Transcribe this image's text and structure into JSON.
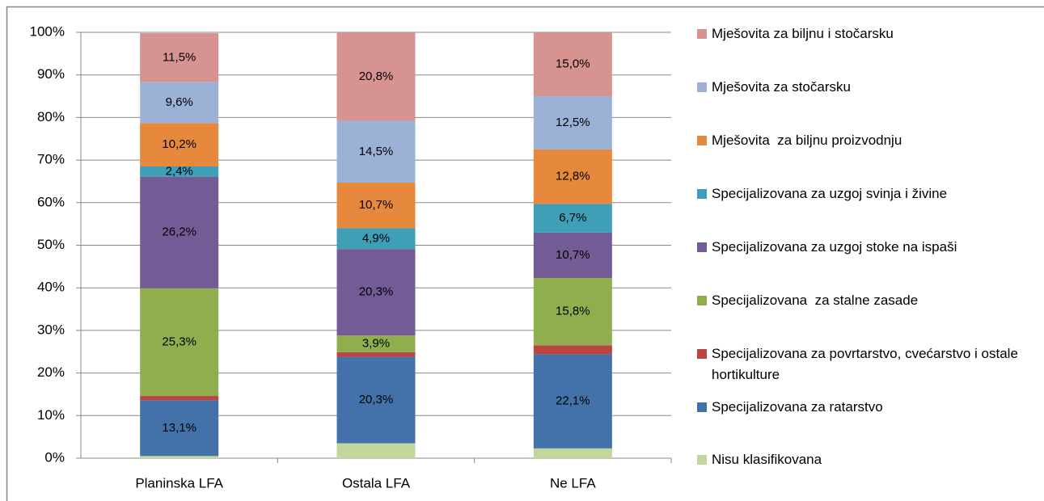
{
  "chart_data": {
    "type": "stacked-bar",
    "categories": [
      "Planinska LFA",
      "Ostala LFA",
      "Ne LFA"
    ],
    "series": [
      {
        "name": "Nisu klasifikovana",
        "color": "#c3d69b",
        "values": [
          0.5,
          3.5,
          2.3
        ],
        "value_labels": [
          null,
          null,
          null
        ]
      },
      {
        "name": "Specijalizovana za ratarstvo",
        "color": "#4372aa",
        "values": [
          13.1,
          20.3,
          22.1
        ],
        "value_labels": [
          "13,1%",
          "20,3%",
          "22,1%"
        ]
      },
      {
        "name": "Specijalizovana za povrtarstvo, cvećarstvo i ostale hortikulture",
        "color": "#bb4542",
        "values": [
          1.0,
          1.1,
          2.1
        ],
        "value_labels": [
          null,
          null,
          null
        ]
      },
      {
        "name": "Specijalizovana  za stalne zasade",
        "color": "#8faf4f",
        "values": [
          25.3,
          3.9,
          15.8
        ],
        "value_labels": [
          "25,3%",
          "3,9%",
          "15,8%"
        ]
      },
      {
        "name": "Specijalizovana za uzgoj stoke na ispaši",
        "color": "#735b96",
        "values": [
          26.2,
          20.3,
          10.7
        ],
        "value_labels": [
          "26,2%",
          "20,3%",
          "10,7%"
        ]
      },
      {
        "name": "Specijalizovana za uzgoj svinja i živine",
        "color": "#3f9fb7",
        "values": [
          2.4,
          4.9,
          6.7
        ],
        "value_labels": [
          "2,4%",
          "4,9%",
          "6,7%"
        ]
      },
      {
        "name": "Mješovita  za biljnu proizvodnju",
        "color": "#e6893d",
        "values": [
          10.2,
          10.7,
          12.8
        ],
        "value_labels": [
          "10,2%",
          "10,7%",
          "12,8%"
        ]
      },
      {
        "name": "Mješovita za stočarsku",
        "color": "#9bb1d6",
        "values": [
          9.6,
          14.5,
          12.5
        ],
        "value_labels": [
          "9,6%",
          "14,5%",
          "12,5%"
        ]
      },
      {
        "name": "Mješovita za biljnu i stočarsku",
        "color": "#d69391",
        "values": [
          11.5,
          20.8,
          15.0
        ],
        "value_labels": [
          "11,5%",
          "20,8%",
          "15,0%"
        ]
      }
    ],
    "ylim": [
      0,
      100
    ],
    "yticks": [
      {
        "value": 0,
        "label": "0%"
      },
      {
        "value": 10,
        "label": "10%"
      },
      {
        "value": 20,
        "label": "20%"
      },
      {
        "value": 30,
        "label": "30%"
      },
      {
        "value": 40,
        "label": "40%"
      },
      {
        "value": 50,
        "label": "50%"
      },
      {
        "value": 60,
        "label": "60%"
      },
      {
        "value": 70,
        "label": "70%"
      },
      {
        "value": 80,
        "label": "80%"
      },
      {
        "value": 90,
        "label": "90%"
      },
      {
        "value": 100,
        "label": "100%"
      }
    ],
    "grid": true,
    "legend": "right"
  }
}
